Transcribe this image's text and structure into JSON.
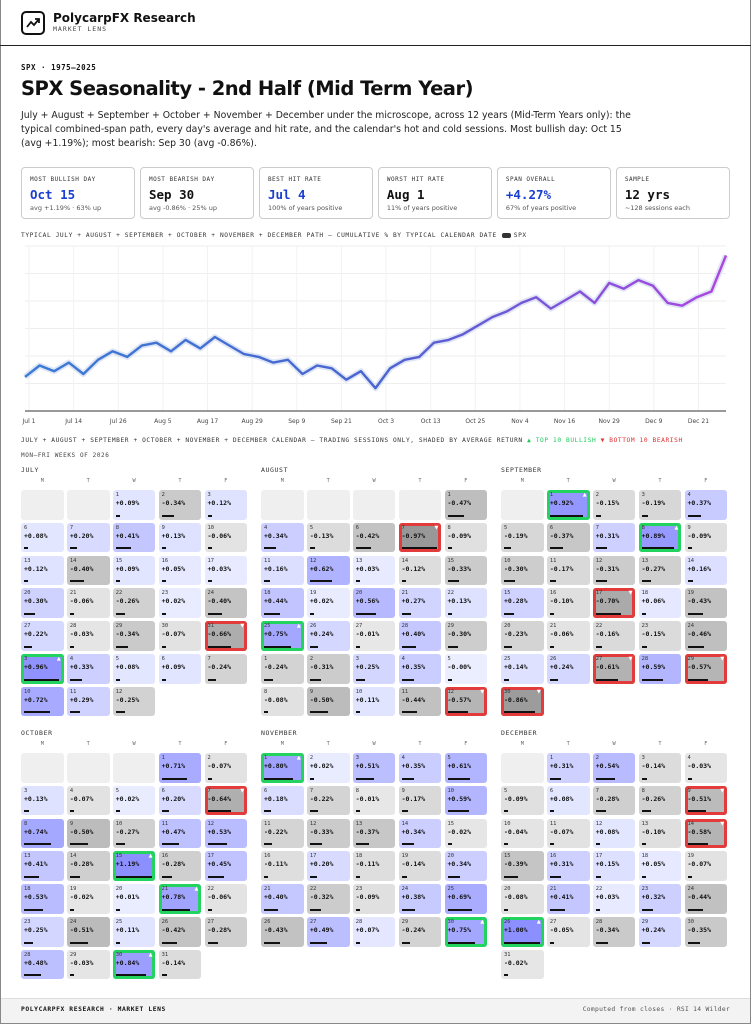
{
  "brand": {
    "name": "PolycarpFX Research",
    "sub": "MARKET LENS"
  },
  "kicker": "SPX · 1975–2025",
  "title": "SPX Seasonality - 2nd Half (Mid Term Year)",
  "intro": "July + August + September + October + November + December under the microscope, across 12 years (Mid-Term Years only): the typical combined-span path, every day's average and hit rate, and the calendar's hot and cold sessions. Most bullish day: Oct 15 (avg +1.19%); most bearish: Sep 30 (avg -0.86%).",
  "cards": [
    {
      "label": "MOST BULLISH DAY",
      "value": "Oct 15",
      "sub": "avg +1.19% · 63% up",
      "color": "#1a3fd0"
    },
    {
      "label": "MOST BEARISH DAY",
      "value": "Sep 30",
      "sub": "avg -0.86% · 25% up",
      "color": "#111111"
    },
    {
      "label": "BEST HIT RATE",
      "value": "Jul 4",
      "sub": "100% of years positive",
      "color": "#1a3fd0"
    },
    {
      "label": "WORST HIT RATE",
      "value": "Aug 1",
      "sub": "11% of years positive",
      "color": "#111111"
    },
    {
      "label": "SPAN OVERALL",
      "value": "+4.27%",
      "sub": "67% of years positive",
      "color": "#1a3fd0"
    },
    {
      "label": "SAMPLE",
      "value": "12 yrs",
      "sub": "~128 sessions each",
      "color": "#111111"
    }
  ],
  "chart_caption": "TYPICAL JULY + AUGUST + SEPTEMBER + OCTOBER + NOVEMBER + DECEMBER PATH — CUMULATIVE % BY TYPICAL CALENDAR DATE",
  "chart_legend": "SPX",
  "chart_data": {
    "type": "line",
    "series": [
      {
        "name": "SPX",
        "values_by_date": true
      }
    ],
    "x_ticks": [
      "Jul 1",
      "Jul 14",
      "Jul 26",
      "Aug 5",
      "Aug 17",
      "Aug 29",
      "Sep 9",
      "Sep 21",
      "Oct 3",
      "Oct 13",
      "Oct 25",
      "Nov 4",
      "Nov 16",
      "Nov 29",
      "Dec 9",
      "Dec 21"
    ],
    "x": [
      "Jul 1",
      "Jul 5",
      "Jul 9",
      "Jul 14",
      "Jul 18",
      "Jul 22",
      "Jul 26",
      "Jul 30",
      "Aug 3",
      "Aug 5",
      "Aug 9",
      "Aug 13",
      "Aug 17",
      "Aug 21",
      "Aug 25",
      "Aug 29",
      "Sep 2",
      "Sep 6",
      "Sep 9",
      "Sep 13",
      "Sep 17",
      "Sep 21",
      "Sep 25",
      "Sep 29",
      "Oct 3",
      "Oct 7",
      "Oct 10",
      "Oct 13",
      "Oct 17",
      "Oct 21",
      "Oct 25",
      "Oct 29",
      "Nov 1",
      "Nov 4",
      "Nov 8",
      "Nov 12",
      "Nov 16",
      "Nov 20",
      "Nov 24",
      "Nov 29",
      "Dec 3",
      "Dec 6",
      "Dec 9",
      "Dec 13",
      "Dec 17",
      "Dec 21",
      "Dec 24",
      "Dec 27",
      "Dec 31"
    ],
    "y": [
      0.0,
      0.4,
      0.2,
      0.5,
      0.1,
      0.6,
      0.9,
      0.7,
      1.1,
      1.2,
      0.9,
      1.3,
      1.0,
      1.4,
      1.1,
      0.8,
      0.7,
      0.5,
      0.6,
      0.1,
      0.4,
      0.3,
      -0.1,
      0.2,
      -0.4,
      0.3,
      0.6,
      0.7,
      1.2,
      1.3,
      1.5,
      1.8,
      2.1,
      2.3,
      2.6,
      2.8,
      2.4,
      2.7,
      3.0,
      2.6,
      3.3,
      3.1,
      3.4,
      3.2,
      2.6,
      2.5,
      2.8,
      3.0,
      4.27
    ],
    "grid": true
  },
  "calendar_caption": "JULY + AUGUST + SEPTEMBER + OCTOBER + NOVEMBER + DECEMBER CALENDAR — TRADING SESSIONS ONLY, SHADED BY AVERAGE RETURN",
  "legend_bull": "▲ TOP 10 BULLISH",
  "legend_bear": "▼ BOTTOM 10 BEARISH",
  "weeks_label": "MON–FRI WEEKS OF 2026",
  "dow": [
    "M",
    "T",
    "W",
    "T",
    "F"
  ],
  "months": [
    {
      "name": "JULY",
      "cells": [
        null,
        null,
        {
          "d": "1",
          "v": "+0.09%"
        },
        {
          "d": "2",
          "v": "-0.34%"
        },
        {
          "d": "3",
          "v": "+0.12%"
        },
        {
          "d": "6",
          "v": "+0.08%"
        },
        {
          "d": "7",
          "v": "+0.20%"
        },
        {
          "d": "8",
          "v": "+0.41%"
        },
        {
          "d": "9",
          "v": "+0.13%"
        },
        {
          "d": "10",
          "v": "-0.06%"
        },
        {
          "d": "13",
          "v": "+0.12%"
        },
        {
          "d": "14",
          "v": "-0.40%"
        },
        {
          "d": "15",
          "v": "+0.09%"
        },
        {
          "d": "16",
          "v": "+0.05%"
        },
        {
          "d": "17",
          "v": "+0.03%"
        },
        {
          "d": "20",
          "v": "+0.30%"
        },
        {
          "d": "21",
          "v": "-0.06%"
        },
        {
          "d": "22",
          "v": "-0.26%"
        },
        {
          "d": "23",
          "v": "+0.02%"
        },
        {
          "d": "24",
          "v": "-0.40%"
        },
        {
          "d": "27",
          "v": "+0.22%"
        },
        {
          "d": "28",
          "v": "-0.03%"
        },
        {
          "d": "29",
          "v": "-0.34%"
        },
        {
          "d": "30",
          "v": "-0.07%"
        },
        {
          "d": "31",
          "v": "-0.66%",
          "m": "bot"
        },
        {
          "d": "3",
          "v": "+0.96%",
          "m": "top"
        },
        {
          "d": "4",
          "v": "+0.33%"
        },
        {
          "d": "5",
          "v": "+0.08%"
        },
        {
          "d": "6",
          "v": "+0.09%"
        },
        {
          "d": "7",
          "v": "-0.24%"
        },
        {
          "d": "10",
          "v": "+0.72%"
        },
        {
          "d": "11",
          "v": "+0.29%"
        },
        {
          "d": "12",
          "v": "-0.25%"
        }
      ]
    },
    {
      "name": "AUGUST",
      "cells": [
        null,
        null,
        null,
        null,
        {
          "d": "1",
          "v": "-0.47%"
        },
        {
          "d": "4",
          "v": "+0.34%"
        },
        {
          "d": "5",
          "v": "-0.13%"
        },
        {
          "d": "6",
          "v": "-0.42%"
        },
        {
          "d": "7",
          "v": "-0.97%",
          "m": "bot"
        },
        {
          "d": "8",
          "v": "-0.09%"
        },
        {
          "d": "11",
          "v": "+0.16%"
        },
        {
          "d": "12",
          "v": "+0.62%"
        },
        {
          "d": "13",
          "v": "+0.03%"
        },
        {
          "d": "14",
          "v": "-0.12%"
        },
        {
          "d": "15",
          "v": "-0.33%"
        },
        {
          "d": "18",
          "v": "+0.44%"
        },
        {
          "d": "19",
          "v": "+0.02%"
        },
        {
          "d": "20",
          "v": "+0.56%"
        },
        {
          "d": "21",
          "v": "+0.27%"
        },
        {
          "d": "22",
          "v": "+0.13%"
        },
        {
          "d": "25",
          "v": "+0.75%",
          "m": "top"
        },
        {
          "d": "26",
          "v": "+0.24%"
        },
        {
          "d": "27",
          "v": "-0.01%"
        },
        {
          "d": "28",
          "v": "+0.40%"
        },
        {
          "d": "29",
          "v": "-0.30%"
        },
        {
          "d": "1",
          "v": "-0.24%"
        },
        {
          "d": "2",
          "v": "-0.31%"
        },
        {
          "d": "3",
          "v": "+0.25%"
        },
        {
          "d": "4",
          "v": "+0.35%"
        },
        {
          "d": "5",
          "v": "-0.00%"
        },
        {
          "d": "8",
          "v": "-0.08%"
        },
        {
          "d": "9",
          "v": "-0.50%"
        },
        {
          "d": "10",
          "v": "+0.11%"
        },
        {
          "d": "11",
          "v": "-0.44%"
        },
        {
          "d": "12",
          "v": "-0.57%",
          "m": "bot"
        }
      ]
    },
    {
      "name": "SEPTEMBER",
      "cells": [
        null,
        {
          "d": "1",
          "v": "+0.92%",
          "m": "top"
        },
        {
          "d": "2",
          "v": "-0.15%"
        },
        {
          "d": "3",
          "v": "-0.19%"
        },
        {
          "d": "4",
          "v": "+0.37%"
        },
        {
          "d": "5",
          "v": "-0.19%"
        },
        {
          "d": "6",
          "v": "-0.37%"
        },
        {
          "d": "7",
          "v": "+0.31%"
        },
        {
          "d": "8",
          "v": "+0.89%",
          "m": "top"
        },
        {
          "d": "9",
          "v": "-0.09%"
        },
        {
          "d": "10",
          "v": "-0.30%"
        },
        {
          "d": "11",
          "v": "-0.17%"
        },
        {
          "d": "12",
          "v": "-0.31%"
        },
        {
          "d": "13",
          "v": "-0.27%"
        },
        {
          "d": "14",
          "v": "+0.16%"
        },
        {
          "d": "15",
          "v": "+0.28%"
        },
        {
          "d": "16",
          "v": "-0.10%"
        },
        {
          "d": "17",
          "v": "-0.70%",
          "m": "bot"
        },
        {
          "d": "18",
          "v": "+0.06%"
        },
        {
          "d": "19",
          "v": "-0.43%"
        },
        {
          "d": "20",
          "v": "-0.23%"
        },
        {
          "d": "21",
          "v": "-0.06%"
        },
        {
          "d": "22",
          "v": "-0.16%"
        },
        {
          "d": "23",
          "v": "-0.15%"
        },
        {
          "d": "24",
          "v": "-0.46%"
        },
        {
          "d": "25",
          "v": "+0.14%"
        },
        {
          "d": "26",
          "v": "+0.24%"
        },
        {
          "d": "27",
          "v": "-0.61%",
          "m": "bot"
        },
        {
          "d": "28",
          "v": "+0.59%"
        },
        {
          "d": "29",
          "v": "-0.57%",
          "m": "bot"
        },
        {
          "d": "30",
          "v": "-0.86%",
          "m": "bot"
        }
      ]
    },
    {
      "name": "OCTOBER",
      "cells": [
        null,
        null,
        null,
        {
          "d": "1",
          "v": "+0.71%"
        },
        {
          "d": "2",
          "v": "-0.07%"
        },
        {
          "d": "3",
          "v": "+0.13%"
        },
        {
          "d": "4",
          "v": "-0.07%"
        },
        {
          "d": "5",
          "v": "+0.02%"
        },
        {
          "d": "6",
          "v": "+0.20%"
        },
        {
          "d": "7",
          "v": "-0.64%",
          "m": "bot"
        },
        {
          "d": "8",
          "v": "+0.74%"
        },
        {
          "d": "9",
          "v": "-0.50%"
        },
        {
          "d": "10",
          "v": "-0.27%"
        },
        {
          "d": "11",
          "v": "+0.47%"
        },
        {
          "d": "12",
          "v": "+0.53%"
        },
        {
          "d": "13",
          "v": "+0.41%"
        },
        {
          "d": "14",
          "v": "-0.28%"
        },
        {
          "d": "15",
          "v": "+1.19%",
          "m": "top"
        },
        {
          "d": "16",
          "v": "-0.28%"
        },
        {
          "d": "17",
          "v": "+0.45%"
        },
        {
          "d": "18",
          "v": "+0.53%"
        },
        {
          "d": "19",
          "v": "-0.02%"
        },
        {
          "d": "20",
          "v": "+0.01%"
        },
        {
          "d": "21",
          "v": "+0.78%",
          "m": "top"
        },
        {
          "d": "22",
          "v": "-0.06%"
        },
        {
          "d": "23",
          "v": "+0.25%"
        },
        {
          "d": "24",
          "v": "-0.51%"
        },
        {
          "d": "25",
          "v": "+0.11%"
        },
        {
          "d": "26",
          "v": "-0.42%"
        },
        {
          "d": "27",
          "v": "-0.28%"
        },
        {
          "d": "28",
          "v": "+0.48%"
        },
        {
          "d": "29",
          "v": "-0.03%"
        },
        {
          "d": "30",
          "v": "+0.84%",
          "m": "top"
        },
        {
          "d": "31",
          "v": "-0.14%"
        }
      ]
    },
    {
      "name": "NOVEMBER",
      "cells": [
        {
          "d": "1",
          "v": "+0.80%",
          "m": "top"
        },
        {
          "d": "2",
          "v": "+0.02%"
        },
        {
          "d": "3",
          "v": "+0.51%"
        },
        {
          "d": "4",
          "v": "+0.35%"
        },
        {
          "d": "5",
          "v": "+0.61%"
        },
        {
          "d": "6",
          "v": "+0.18%"
        },
        {
          "d": "7",
          "v": "-0.22%"
        },
        {
          "d": "8",
          "v": "-0.01%"
        },
        {
          "d": "9",
          "v": "-0.17%"
        },
        {
          "d": "10",
          "v": "+0.59%"
        },
        {
          "d": "11",
          "v": "-0.22%"
        },
        {
          "d": "12",
          "v": "-0.33%"
        },
        {
          "d": "13",
          "v": "-0.37%"
        },
        {
          "d": "14",
          "v": "+0.34%"
        },
        {
          "d": "15",
          "v": "-0.02%"
        },
        {
          "d": "16",
          "v": "-0.11%"
        },
        {
          "d": "17",
          "v": "+0.20%"
        },
        {
          "d": "18",
          "v": "-0.11%"
        },
        {
          "d": "19",
          "v": "-0.14%"
        },
        {
          "d": "20",
          "v": "+0.34%"
        },
        {
          "d": "21",
          "v": "+0.40%"
        },
        {
          "d": "22",
          "v": "-0.32%"
        },
        {
          "d": "23",
          "v": "-0.09%"
        },
        {
          "d": "24",
          "v": "+0.38%"
        },
        {
          "d": "25",
          "v": "+0.69%"
        },
        {
          "d": "26",
          "v": "-0.43%"
        },
        {
          "d": "27",
          "v": "+0.49%"
        },
        {
          "d": "28",
          "v": "+0.07%"
        },
        {
          "d": "29",
          "v": "-0.24%"
        },
        {
          "d": "30",
          "v": "+0.75%",
          "m": "top"
        }
      ]
    },
    {
      "name": "DECEMBER",
      "cells": [
        null,
        {
          "d": "1",
          "v": "+0.31%"
        },
        {
          "d": "2",
          "v": "+0.54%"
        },
        {
          "d": "3",
          "v": "-0.14%"
        },
        {
          "d": "4",
          "v": "-0.03%"
        },
        {
          "d": "5",
          "v": "-0.09%"
        },
        {
          "d": "6",
          "v": "+0.08%"
        },
        {
          "d": "7",
          "v": "-0.28%"
        },
        {
          "d": "8",
          "v": "-0.26%"
        },
        {
          "d": "9",
          "v": "-0.51%",
          "m": "bot"
        },
        {
          "d": "10",
          "v": "-0.04%"
        },
        {
          "d": "11",
          "v": "-0.07%"
        },
        {
          "d": "12",
          "v": "+0.08%"
        },
        {
          "d": "13",
          "v": "-0.10%"
        },
        {
          "d": "14",
          "v": "-0.58%",
          "m": "bot"
        },
        {
          "d": "15",
          "v": "-0.39%"
        },
        {
          "d": "16",
          "v": "+0.31%"
        },
        {
          "d": "17",
          "v": "+0.15%"
        },
        {
          "d": "18",
          "v": "+0.05%"
        },
        {
          "d": "19",
          "v": "-0.07%"
        },
        {
          "d": "20",
          "v": "-0.08%"
        },
        {
          "d": "21",
          "v": "+0.41%"
        },
        {
          "d": "22",
          "v": "+0.03%"
        },
        {
          "d": "23",
          "v": "+0.32%"
        },
        {
          "d": "24",
          "v": "-0.44%"
        },
        {
          "d": "26",
          "v": "+1.00%",
          "m": "top"
        },
        {
          "d": "27",
          "v": "-0.05%"
        },
        {
          "d": "28",
          "v": "-0.34%"
        },
        {
          "d": "29",
          "v": "+0.24%"
        },
        {
          "d": "30",
          "v": "-0.35%"
        },
        {
          "d": "31",
          "v": "-0.02%"
        }
      ]
    }
  ],
  "footer_left": "POLYCARPFX RESEARCH · MARKET LENS",
  "footer_right": "Computed from closes · RSI 14 Wilder"
}
